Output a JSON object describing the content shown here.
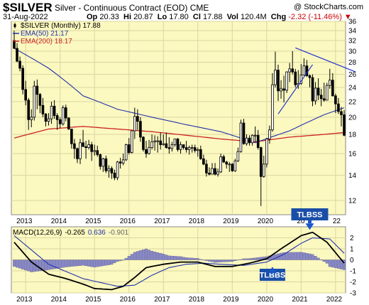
{
  "header": {
    "symbol": "$SILVER",
    "description": "Silver - Continuous Contract (EOD)",
    "exchange": "CME",
    "credit": "@ StockCharts.com",
    "date": "31-Aug-2022",
    "open_label": "Op",
    "open": "20.33",
    "high_label": "Hi",
    "high": "20.87",
    "low_label": "Lo",
    "low": "17.80",
    "close_label": "Cl",
    "close": "17.88",
    "volume_label": "Vol",
    "volume": "120.4M",
    "change_label": "Chg",
    "change": "-2.32 (-11.46%)",
    "change_color": "#cc0000"
  },
  "colors": {
    "panel_bg": "#fbf8c0",
    "candle": "#000000",
    "ema50": "#2233aa",
    "ema200": "#cc2222",
    "trendline": "#2233cc",
    "macd_line": "#000000",
    "signal_line": "#2233aa",
    "histogram": "#8888cc",
    "arrow": "#1a55cc",
    "label_bg": "#1a4fa8",
    "label_text": "#ffffff"
  },
  "chart_data": [
    {
      "type": "candlestick",
      "title": "$SILVER (Monthly) 17.88",
      "frequency": "monthly",
      "ylim": [
        11,
        36
      ],
      "y_ticks": [
        12,
        14,
        16,
        18,
        20,
        22,
        24,
        26,
        28,
        30,
        32,
        34,
        36
      ],
      "x_ticks": [
        "2013",
        "2014",
        "2015",
        "2016",
        "2017",
        "2018",
        "2019",
        "2020",
        "2021",
        "2022"
      ],
      "x_tick_overlap": "20",
      "x_tick_overlap_2": "22",
      "legend": [
        {
          "label": "$SILVER (Monthly) 17.88",
          "color": "#000000",
          "style": "candle"
        },
        {
          "label": "EMA(50) 21.17",
          "color": "#2233aa",
          "style": "line"
        },
        {
          "label": "EMA(200) 18.17",
          "color": "#cc2222",
          "style": "line"
        }
      ],
      "ohlc_monthly_approx": [
        [
          32.0,
          34.0,
          30.5,
          30.5
        ],
        [
          30.5,
          31.5,
          28.0,
          28.2
        ],
        [
          28.2,
          29.0,
          26.5,
          27.0
        ],
        [
          27.0,
          27.5,
          23.0,
          23.7
        ],
        [
          23.7,
          25.0,
          21.5,
          22.2
        ],
        [
          22.2,
          22.5,
          18.5,
          19.7
        ],
        [
          19.7,
          21.0,
          18.8,
          20.0
        ],
        [
          20.0,
          25.0,
          19.6,
          24.2
        ],
        [
          24.2,
          25.2,
          21.0,
          23.0
        ],
        [
          23.0,
          23.2,
          20.5,
          21.5
        ],
        [
          21.5,
          22.5,
          20.0,
          20.4
        ],
        [
          20.4,
          20.5,
          18.9,
          19.5
        ],
        [
          19.5,
          20.5,
          19.0,
          19.8
        ],
        [
          19.8,
          22.0,
          19.2,
          21.4
        ],
        [
          21.4,
          22.2,
          19.8,
          20.2
        ],
        [
          20.2,
          20.5,
          18.5,
          19.7
        ],
        [
          19.7,
          20.0,
          18.7,
          19.2
        ],
        [
          19.2,
          21.5,
          19.0,
          21.2
        ],
        [
          21.2,
          21.6,
          19.5,
          19.9
        ],
        [
          19.9,
          20.0,
          18.5,
          18.6
        ],
        [
          18.6,
          18.6,
          16.5,
          17.0
        ],
        [
          17.0,
          17.5,
          15.5,
          16.5
        ],
        [
          16.5,
          16.6,
          15.1,
          15.5
        ],
        [
          15.5,
          17.5,
          15.0,
          17.1
        ],
        [
          17.1,
          18.5,
          16.7,
          16.7
        ],
        [
          16.7,
          17.3,
          15.5,
          16.6
        ],
        [
          16.6,
          17.4,
          16.4,
          16.9
        ],
        [
          16.9,
          17.2,
          15.3,
          16.2
        ],
        [
          16.2,
          16.9,
          15.8,
          16.3
        ],
        [
          16.3,
          16.8,
          15.7,
          15.9
        ],
        [
          15.9,
          16.0,
          14.5,
          14.8
        ],
        [
          14.8,
          15.6,
          14.3,
          15.5
        ],
        [
          15.5,
          15.8,
          14.2,
          14.4
        ],
        [
          14.4,
          14.9,
          13.8,
          14.6
        ],
        [
          14.6,
          14.8,
          13.7,
          14.2
        ],
        [
          14.2,
          14.5,
          13.6,
          13.8
        ],
        [
          13.8,
          15.3,
          13.6,
          15.2
        ],
        [
          15.2,
          15.6,
          14.6,
          15.1
        ],
        [
          15.1,
          16.0,
          14.9,
          15.4
        ],
        [
          15.4,
          17.0,
          15.3,
          16.9
        ],
        [
          16.9,
          17.6,
          15.9,
          16.1
        ],
        [
          16.1,
          18.4,
          16.0,
          18.4
        ],
        [
          18.4,
          21.2,
          17.5,
          20.1
        ],
        [
          20.1,
          21.0,
          18.5,
          19.5
        ],
        [
          19.5,
          20.0,
          17.2,
          17.7
        ],
        [
          17.7,
          17.8,
          16.2,
          16.4
        ],
        [
          16.4,
          17.3,
          15.6,
          16.0
        ],
        [
          16.0,
          17.4,
          15.9,
          16.6
        ],
        [
          16.6,
          18.0,
          16.4,
          17.2
        ],
        [
          17.2,
          17.9,
          16.3,
          17.3
        ],
        [
          17.3,
          17.8,
          16.1,
          17.3
        ],
        [
          17.3,
          18.2,
          16.4,
          16.9
        ],
        [
          16.9,
          18.0,
          16.8,
          17.0
        ],
        [
          17.0,
          18.2,
          16.5,
          16.6
        ],
        [
          16.6,
          17.7,
          16.0,
          16.5
        ],
        [
          16.5,
          17.2,
          16.2,
          16.9
        ],
        [
          16.9,
          17.5,
          16.7,
          17.5
        ],
        [
          17.5,
          17.6,
          16.2,
          16.4
        ],
        [
          16.4,
          17.2,
          16.0,
          16.9
        ],
        [
          16.9,
          16.9,
          16.4,
          16.6
        ],
        [
          16.6,
          17.3,
          16.1,
          16.4
        ],
        [
          16.4,
          16.8,
          15.9,
          16.6
        ],
        [
          16.6,
          16.9,
          16.1,
          16.6
        ],
        [
          16.6,
          16.9,
          16.1,
          16.3
        ],
        [
          16.3,
          16.6,
          15.7,
          16.4
        ],
        [
          16.4,
          16.8,
          15.4,
          15.5
        ],
        [
          15.5,
          15.9,
          14.9,
          15.0
        ],
        [
          15.0,
          15.4,
          13.9,
          14.2
        ],
        [
          14.2,
          14.7,
          14.0,
          14.1
        ],
        [
          14.1,
          15.1,
          14.1,
          14.6
        ],
        [
          14.6,
          15.1,
          14.0,
          14.1
        ],
        [
          14.1,
          14.6,
          13.9,
          14.3
        ],
        [
          14.3,
          16.0,
          14.2,
          15.7
        ],
        [
          15.7,
          15.9,
          15.1,
          15.2
        ],
        [
          15.2,
          15.3,
          14.6,
          15.0
        ],
        [
          15.0,
          15.2,
          14.3,
          15.0
        ],
        [
          15.0,
          15.1,
          14.3,
          14.4
        ],
        [
          14.4,
          15.5,
          14.3,
          15.3
        ],
        [
          15.3,
          16.6,
          15.2,
          16.2
        ],
        [
          16.2,
          19.7,
          16.1,
          19.3
        ],
        [
          19.3,
          19.8,
          16.9,
          17.0
        ],
        [
          17.0,
          18.0,
          16.8,
          17.6
        ],
        [
          17.6,
          17.9,
          16.8,
          17.1
        ],
        [
          17.1,
          18.0,
          16.8,
          17.9
        ],
        [
          17.9,
          18.9,
          17.2,
          17.9
        ],
        [
          17.9,
          18.5,
          16.4,
          16.6
        ],
        [
          16.6,
          16.7,
          11.6,
          13.9
        ],
        [
          13.9,
          15.8,
          13.8,
          15.0
        ],
        [
          15.0,
          17.6,
          14.7,
          17.5
        ],
        [
          17.5,
          19.0,
          17.0,
          18.5
        ],
        [
          18.5,
          26.2,
          18.3,
          24.4
        ],
        [
          24.4,
          29.9,
          24.0,
          26.7
        ],
        [
          26.7,
          27.6,
          22.1,
          23.5
        ],
        [
          23.5,
          25.1,
          22.4,
          23.8
        ],
        [
          23.8,
          25.8,
          21.9,
          23.6
        ],
        [
          23.6,
          26.5,
          23.2,
          26.4
        ],
        [
          26.4,
          27.9,
          24.8,
          26.9
        ],
        [
          26.9,
          30.0,
          26.0,
          26.4
        ],
        [
          26.4,
          26.9,
          24.0,
          24.4
        ],
        [
          24.4,
          26.7,
          23.8,
          24.6
        ],
        [
          24.6,
          27.7,
          24.4,
          25.9
        ],
        [
          25.9,
          28.7,
          25.8,
          27.4
        ],
        [
          27.4,
          28.4,
          25.6,
          25.8
        ],
        [
          25.8,
          26.0,
          24.0,
          25.5
        ],
        [
          25.5,
          26.0,
          21.4,
          22.1
        ],
        [
          22.1,
          24.8,
          21.6,
          23.9
        ],
        [
          23.9,
          25.4,
          22.2,
          22.9
        ],
        [
          22.9,
          23.8,
          21.4,
          22.4
        ],
        [
          22.4,
          24.7,
          22.0,
          22.2
        ],
        [
          22.2,
          24.7,
          22.3,
          24.3
        ],
        [
          24.3,
          26.9,
          23.8,
          25.1
        ],
        [
          25.1,
          26.2,
          22.7,
          22.8
        ],
        [
          22.8,
          23.1,
          20.5,
          21.7
        ],
        [
          21.7,
          22.5,
          20.4,
          20.7
        ],
        [
          20.7,
          21.3,
          18.9,
          20.3
        ],
        [
          20.3,
          20.9,
          17.8,
          17.9
        ]
      ],
      "ema50_approx": [
        [
          0,
          30.5
        ],
        [
          12,
          27.0
        ],
        [
          24,
          22.8
        ],
        [
          36,
          21.0
        ],
        [
          48,
          20.0
        ],
        [
          60,
          19.1
        ],
        [
          72,
          18.3
        ],
        [
          84,
          17.1
        ],
        [
          96,
          18.4
        ],
        [
          108,
          20.3
        ],
        [
          115,
          21.2
        ]
      ],
      "ema200_approx": [
        [
          0,
          17.6
        ],
        [
          12,
          18.6
        ],
        [
          24,
          18.9
        ],
        [
          36,
          18.6
        ],
        [
          48,
          18.3
        ],
        [
          60,
          17.9
        ],
        [
          72,
          17.5
        ],
        [
          84,
          17.2
        ],
        [
          96,
          17.7
        ],
        [
          108,
          18.0
        ],
        [
          115,
          18.2
        ]
      ]
    },
    {
      "type": "line",
      "title": "MACD(12,26,9) -0.265, 0.636, -0.901",
      "legend": [
        {
          "label": "MACD(12,26,9)",
          "color": "#000000"
        },
        {
          "label": "-0.265",
          "color": "#000000"
        },
        {
          "label": "0.636",
          "color": "#2233aa"
        },
        {
          "label": "-0.901",
          "color": "#666666"
        }
      ],
      "ylim": [
        -3,
        3
      ],
      "y_ticks": [
        -3,
        -2,
        -1,
        0,
        1,
        2
      ],
      "x_ticks": [
        "2013",
        "2014",
        "2015",
        "2016",
        "2017",
        "2018",
        "2019",
        "2020",
        "2021",
        "2022"
      ],
      "macd_approx": [
        [
          0,
          1.6
        ],
        [
          6,
          -0.2
        ],
        [
          12,
          -1.3
        ],
        [
          18,
          -1.7
        ],
        [
          24,
          -2.2
        ],
        [
          28,
          -2.6
        ],
        [
          34,
          -2.7
        ],
        [
          38,
          -2.4
        ],
        [
          42,
          -1.6
        ],
        [
          46,
          -0.7
        ],
        [
          52,
          -0.4
        ],
        [
          58,
          -0.2
        ],
        [
          64,
          -0.2
        ],
        [
          70,
          -0.6
        ],
        [
          76,
          -0.6
        ],
        [
          82,
          -0.3
        ],
        [
          88,
          0.1
        ],
        [
          93,
          1.0
        ],
        [
          100,
          2.2
        ],
        [
          104,
          2.5
        ],
        [
          109,
          1.6
        ],
        [
          115,
          -0.3
        ]
      ],
      "signal_approx": [
        [
          0,
          2.2
        ],
        [
          12,
          -0.4
        ],
        [
          24,
          -1.7
        ],
        [
          36,
          -2.4
        ],
        [
          42,
          -2.3
        ],
        [
          48,
          -1.4
        ],
        [
          54,
          -0.7
        ],
        [
          60,
          -0.4
        ],
        [
          66,
          -0.3
        ],
        [
          72,
          -0.4
        ],
        [
          80,
          -0.5
        ],
        [
          88,
          -0.2
        ],
        [
          94,
          0.5
        ],
        [
          100,
          1.5
        ],
        [
          104,
          2.0
        ],
        [
          110,
          1.9
        ],
        [
          115,
          0.6
        ]
      ],
      "annotations": [
        {
          "text": "TLBSS",
          "type": "callout"
        },
        {
          "text": "TLBBS",
          "type": "callout"
        }
      ]
    }
  ]
}
